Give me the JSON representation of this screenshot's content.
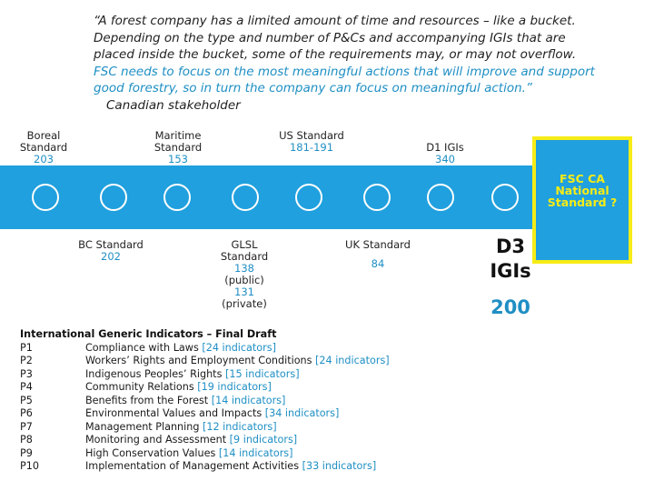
{
  "quote": {
    "line1": "“A forest company has a limited amount of time and resources – like a bucket. Depending on the type and number of P&Cs and accompanying IGIs that are placed inside the bucket, some of the requirements may, or may not overflow.",
    "line2": "FSC needs to focus on the most meaningful actions that will improve and support good forestry, so in turn the company can focus on meaningful action.”",
    "attribution": "Canadian stakeholder"
  },
  "timeline": {
    "top": [
      {
        "label": "Boreal Standard",
        "count": "203"
      },
      {
        "label": "Maritime Standard",
        "count": "153"
      },
      {
        "label": "US Standard",
        "count": "181-191"
      },
      {
        "label": "D1 IGIs",
        "count": "340"
      }
    ],
    "bottom": [
      {
        "label": "BC Standard",
        "count": "202"
      },
      {
        "label": "GLSL Standard",
        "count": "138",
        "count_note": "(public)",
        "count2": "131",
        "count2_note": "(private)"
      },
      {
        "label": "UK Standard",
        "count": "84"
      }
    ],
    "d3": {
      "label_line1": "D3",
      "label_line2": "IGIs",
      "count": "200"
    },
    "fsc": {
      "text": "FSC CA National Standard ?"
    }
  },
  "colors": {
    "band": "#20a0de",
    "accent_text": "#1f8fc4",
    "fsc_border": "#f6ec16"
  },
  "igi": {
    "title": "International Generic Indicators – Final Draft",
    "rows": [
      {
        "code": "P1",
        "name": "Compliance with Laws",
        "count": "[24 indicators]"
      },
      {
        "code": "P2",
        "name": "Workers’ Rights and Employment Conditions",
        "count": "[24 indicators]"
      },
      {
        "code": "P3",
        "name": "Indigenous Peoples’ Rights",
        "count": "[15 indicators]"
      },
      {
        "code": "P4",
        "name": "Community Relations",
        "count": "[19 indicators]"
      },
      {
        "code": "P5",
        "name": "Benefits from the Forest",
        "count": "[14 indicators]"
      },
      {
        "code": "P6",
        "name": "Environmental Values and Impacts",
        "count": "[34 indicators]"
      },
      {
        "code": "P7",
        "name": "Management Planning",
        "count": "[12 indicators]"
      },
      {
        "code": "P8",
        "name": "Monitoring and Assessment",
        "count": "[9 indicators]"
      },
      {
        "code": "P9",
        "name": "High Conservation Values",
        "count": "[14 indicators]"
      },
      {
        "code": "P10",
        "name": "Implementation of Management Activities",
        "count": "[33 indicators]"
      }
    ]
  }
}
